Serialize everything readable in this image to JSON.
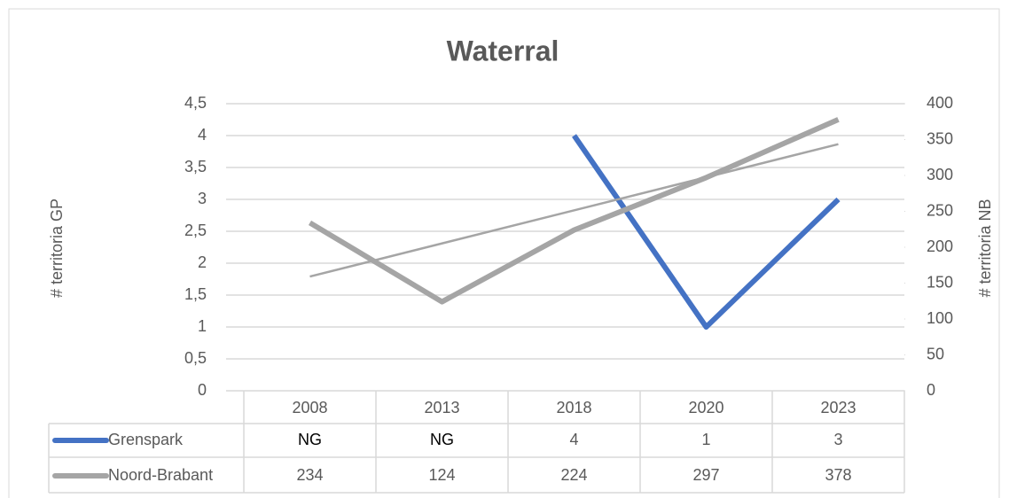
{
  "chart_data": {
    "type": "line",
    "title": "Waterral",
    "categories": [
      "2008",
      "2013",
      "2018",
      "2020",
      "2023"
    ],
    "series": [
      {
        "name": "Grenspark",
        "color": "#4472c4",
        "values": [
          null,
          null,
          4,
          1,
          3
        ],
        "value_labels": [
          "NG",
          "NG",
          "4",
          "1",
          "3"
        ]
      },
      {
        "name": "Noord-Brabant",
        "color": "#a5a5a5",
        "values": [
          234,
          124,
          224,
          297,
          378
        ],
        "axis": "y2",
        "trendline": true
      }
    ],
    "ylabel": "# territoria GP",
    "y2label": "# territoria NB",
    "ylim": [
      0,
      4.5
    ],
    "yticks": [
      0,
      {
        "value": 0.5,
        "label": "0,5"
      },
      1,
      {
        "value": 1.5,
        "label": "1,5"
      },
      2,
      {
        "value": 2.5,
        "label": "2,5"
      },
      3,
      {
        "value": 3.5,
        "label": "3,5"
      },
      4,
      {
        "value": 4.5,
        "label": "4,5"
      }
    ],
    "y2lim": [
      0,
      400
    ],
    "y2ticks": [
      0,
      50,
      100,
      150,
      200,
      250,
      300,
      350,
      400
    ],
    "grid": true,
    "data_table": true
  }
}
